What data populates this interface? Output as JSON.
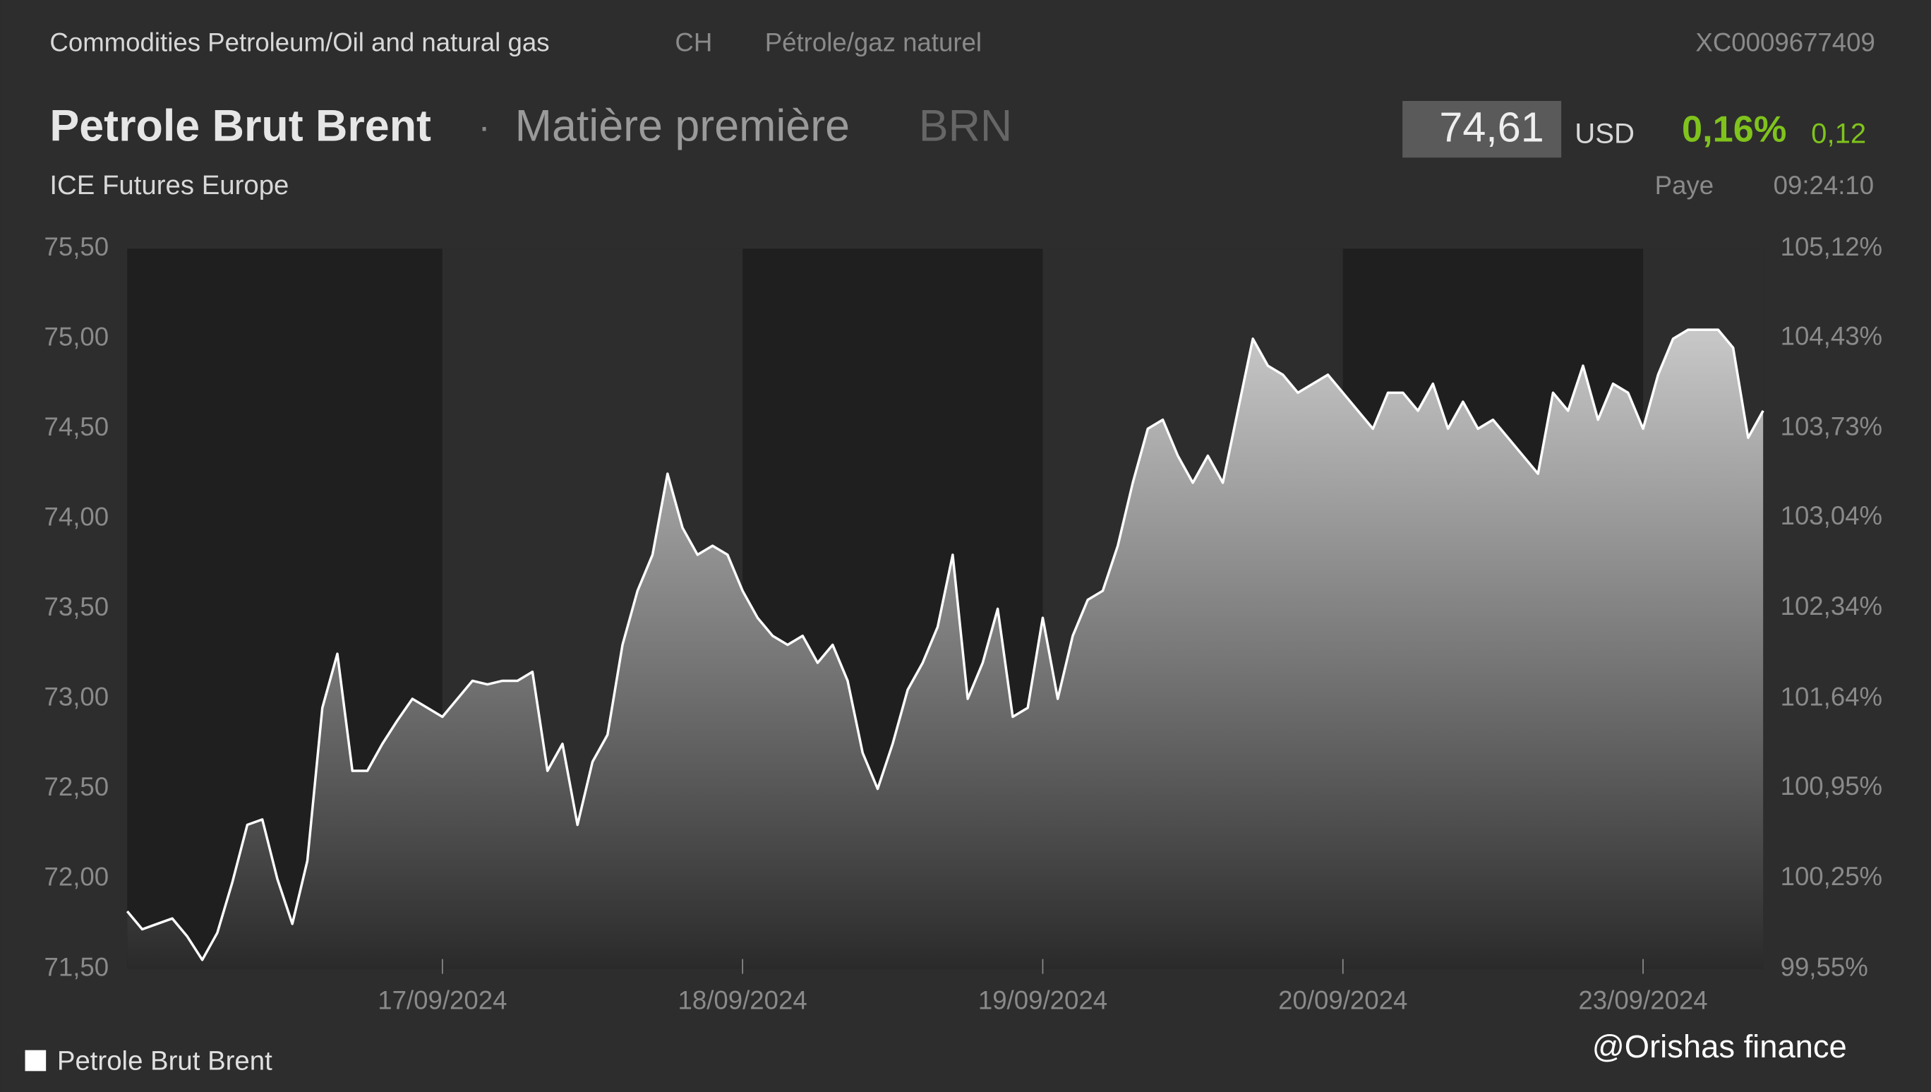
{
  "header": {
    "path": "Commodities Petroleum/Oil and natural gas",
    "country": "CH",
    "sector": "Pétrole/gaz naturel",
    "isin": "XC0009677409",
    "name": "Petrole Brut Brent",
    "separator": "·",
    "kind": "Matière première",
    "symbol": "BRN",
    "price": "74,61",
    "currency": "USD",
    "change_pct": "0,16%",
    "change": "0,12",
    "exchange": "ICE Futures Europe",
    "market": "Paye",
    "time": "09:24:10"
  },
  "chart_data": {
    "type": "area",
    "categories": [
      null,
      null,
      null,
      null,
      null,
      null,
      null,
      null,
      null,
      null,
      null,
      null,
      null,
      null,
      null,
      null,
      null,
      null,
      null,
      null,
      null,
      "17/09/2024",
      null,
      null,
      null,
      null,
      null,
      null,
      null,
      null,
      null,
      null,
      null,
      null,
      null,
      null,
      null,
      null,
      null,
      null,
      null,
      "18/09/2024",
      null,
      null,
      null,
      null,
      null,
      null,
      null,
      null,
      null,
      null,
      null,
      null,
      null,
      null,
      null,
      null,
      null,
      null,
      null,
      "19/09/2024",
      null,
      null,
      null,
      null,
      null,
      null,
      null,
      null,
      null,
      null,
      null,
      null,
      null,
      null,
      null,
      null,
      null,
      null,
      null,
      "20/09/2024",
      null,
      null,
      null,
      null,
      null,
      null,
      null,
      null,
      null,
      null,
      null,
      null,
      null,
      null,
      null,
      null,
      null,
      null,
      null,
      "23/09/2024",
      null,
      null,
      null,
      null,
      null,
      null,
      null,
      null
    ],
    "series": [
      {
        "name": "Petrole Brut Brent",
        "color": "#ffffff",
        "values": [
          71.82,
          71.72,
          71.75,
          71.78,
          71.68,
          71.55,
          71.7,
          71.98,
          72.3,
          72.33,
          72.0,
          71.75,
          72.1,
          72.95,
          73.25,
          72.6,
          72.6,
          72.75,
          72.88,
          73.0,
          72.95,
          72.9,
          73.0,
          73.1,
          73.08,
          73.1,
          73.1,
          73.15,
          72.6,
          72.75,
          72.3,
          72.65,
          72.8,
          73.3,
          73.6,
          73.8,
          74.25,
          73.95,
          73.8,
          73.85,
          73.8,
          73.6,
          73.45,
          73.35,
          73.3,
          73.35,
          73.2,
          73.3,
          73.1,
          72.7,
          72.5,
          72.75,
          73.05,
          73.2,
          73.4,
          73.8,
          73.0,
          73.2,
          73.5,
          72.9,
          72.95,
          73.45,
          73.0,
          73.35,
          73.55,
          73.6,
          73.85,
          74.2,
          74.5,
          74.55,
          74.35,
          74.2,
          74.35,
          74.2,
          74.6,
          75.0,
          74.85,
          74.8,
          74.7,
          74.75,
          74.8,
          74.7,
          74.6,
          74.5,
          74.7,
          74.7,
          74.6,
          74.75,
          74.5,
          74.65,
          74.5,
          74.55,
          74.45,
          74.35,
          74.25,
          74.7,
          74.6,
          74.85,
          74.55,
          74.75,
          74.7,
          74.5,
          74.8,
          75.0,
          75.05,
          75.05,
          75.05,
          74.95,
          74.45,
          74.6
        ]
      }
    ],
    "ylim": [
      71.5,
      75.5
    ],
    "yticks": [
      {
        "value": 71.5,
        "label": "71,50"
      },
      {
        "value": 72,
        "label": "72,00"
      },
      {
        "value": 72.5,
        "label": "72,50"
      },
      {
        "value": 73,
        "label": "73,00"
      },
      {
        "value": 73.5,
        "label": "73,50"
      },
      {
        "value": 74,
        "label": "74,00"
      },
      {
        "value": 74.5,
        "label": "74,50"
      },
      {
        "value": 75,
        "label": "75,00"
      },
      {
        "value": 75.5,
        "label": "75,50"
      }
    ],
    "y2lim": [
      99.55,
      105.12
    ],
    "y2ticks": [
      {
        "value": 99.55,
        "label": "99,55%"
      },
      {
        "value": 100.25,
        "label": "100,25%"
      },
      {
        "value": 100.95,
        "label": "100,95%"
      },
      {
        "value": 101.64,
        "label": "101,64%"
      },
      {
        "value": 102.34,
        "label": "102,34%"
      },
      {
        "value": 103.04,
        "label": "103,04%"
      },
      {
        "value": 103.73,
        "label": "103,73%"
      },
      {
        "value": 104.43,
        "label": "104,43%"
      },
      {
        "value": 105.12,
        "label": "105,12%"
      }
    ],
    "grid": false,
    "legend": "bottom-left"
  },
  "watermark": "@Orishas finance"
}
